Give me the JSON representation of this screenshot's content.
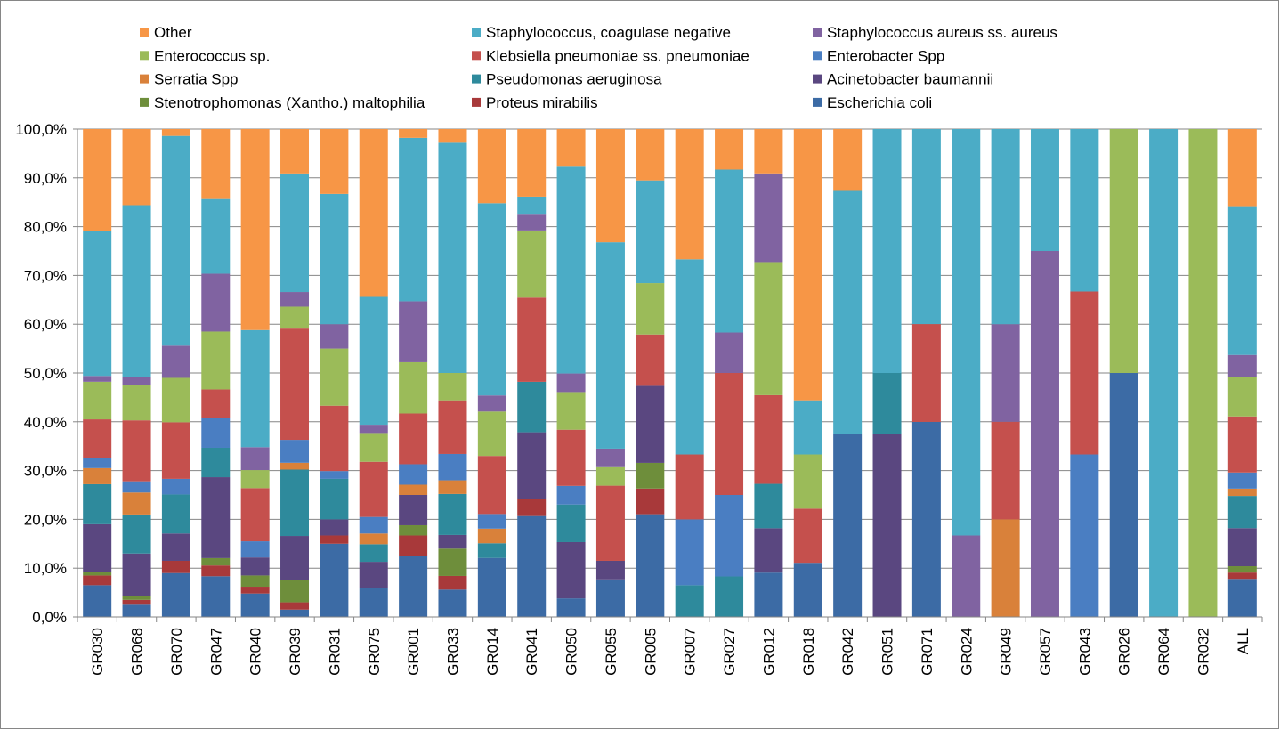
{
  "chart_data": {
    "type": "bar",
    "stacked": true,
    "normalized": true,
    "categories": [
      "GR030",
      "GR068",
      "GR070",
      "GR047",
      "GR040",
      "GR039",
      "GR031",
      "GR075",
      "GR001",
      "GR033",
      "GR014",
      "GR041",
      "GR050",
      "GR055",
      "GR005",
      "GR007",
      "GR027",
      "GR012",
      "GR018",
      "GR042",
      "GR051",
      "GR071",
      "GR024",
      "GR049",
      "GR057",
      "GR043",
      "GR026",
      "GR064",
      "GR032",
      "ALL"
    ],
    "ylim": [
      0,
      100
    ],
    "yticks": [
      "0,0%",
      "10,0%",
      "20,0%",
      "30,0%",
      "40,0%",
      "50,0%",
      "60,0%",
      "70,0%",
      "80,0%",
      "90,0%",
      "100,0%"
    ],
    "grid": true,
    "legend_position": "top",
    "series": [
      {
        "name": "Escherichia coli",
        "color": "#3C6BA5",
        "values": [
          6.5,
          2.5,
          9,
          8.3,
          4.8,
          1.5,
          15,
          5.9,
          12.5,
          5.6,
          12.1,
          20,
          3.8,
          7.7,
          20,
          0,
          0,
          9.1,
          11.1,
          37.5,
          0,
          33.3,
          0,
          0,
          0,
          0,
          50,
          0,
          0,
          7.8
        ]
      },
      {
        "name": "Proteus mirabilis",
        "color": "#A8393A",
        "values": [
          2,
          1,
          2.5,
          2.2,
          1.4,
          1.5,
          1.7,
          0,
          4.2,
          2.8,
          0,
          3.3,
          0,
          0,
          5,
          0,
          0,
          0,
          0,
          0,
          0,
          0,
          0,
          0,
          0,
          0,
          0,
          0,
          0,
          1.3
        ]
      },
      {
        "name": "Stenotrophomonas (Xantho.) maltophilia",
        "color": "#6E8E3B",
        "values": [
          0.8,
          0.7,
          0,
          1.5,
          2.3,
          4.5,
          0,
          0,
          2.1,
          5.6,
          0,
          0,
          0,
          0,
          5,
          0,
          0,
          0,
          0,
          0,
          0,
          0,
          0,
          0,
          0,
          0,
          0,
          0,
          0,
          1.3
        ]
      },
      {
        "name": "Acinetobacter baumannii",
        "color": "#5A4780",
        "values": [
          9.7,
          8.8,
          5.6,
          16.5,
          3.7,
          9.1,
          3.3,
          5.4,
          6.2,
          2.8,
          0,
          13.3,
          11.5,
          3.8,
          15,
          0,
          0,
          9.1,
          0,
          0,
          37.5,
          0,
          0,
          0,
          0,
          0,
          0,
          0,
          0,
          7.8
        ]
      },
      {
        "name": "Pseudomonas aeruginosa",
        "color": "#2E8A9C",
        "values": [
          8.2,
          8,
          8,
          6,
          0,
          13.6,
          8.3,
          3.6,
          0,
          8.4,
          3,
          10,
          7.7,
          0,
          0,
          6.5,
          8.3,
          9.1,
          0,
          0,
          12.5,
          0,
          0,
          0,
          0,
          0,
          0,
          0,
          0,
          6.6
        ]
      },
      {
        "name": "Serratia Spp",
        "color": "#D9813A",
        "values": [
          3.3,
          4.5,
          0,
          0,
          0,
          1.4,
          0,
          2.2,
          2.1,
          2.8,
          3,
          0,
          0,
          0,
          0,
          0,
          0,
          0,
          0,
          0,
          0,
          0,
          0,
          20,
          0,
          0,
          0,
          0,
          0,
          1.5
        ]
      },
      {
        "name": "Enterobacter Spp",
        "color": "#4A7EC2",
        "values": [
          2.1,
          2.3,
          3.2,
          6,
          3.3,
          4.7,
          1.6,
          3.4,
          4.2,
          5.4,
          3,
          0,
          3.8,
          0,
          0,
          13.5,
          16.7,
          0,
          0,
          0,
          0,
          0,
          0,
          0,
          0,
          33.3,
          0,
          0,
          0,
          3.3
        ]
      },
      {
        "name": "Klebsiella pneumoniae ss. pneumoniae",
        "color": "#C5504D",
        "values": [
          7.9,
          12.5,
          11.6,
          5.9,
          10.9,
          22.8,
          13.4,
          11.3,
          10.4,
          11,
          11.9,
          16.7,
          11.5,
          15.4,
          10,
          13.3,
          25,
          18.2,
          11.1,
          0,
          0,
          16.7,
          0,
          20,
          0,
          33.4,
          0,
          0,
          0,
          11.5
        ]
      },
      {
        "name": "Enterococcus sp.",
        "color": "#9BBB59",
        "values": [
          7.7,
          7.2,
          9.1,
          11.8,
          3.7,
          4.5,
          11.7,
          5.9,
          10.5,
          5.6,
          9.1,
          13.3,
          7.7,
          3.8,
          10,
          0,
          0,
          27.3,
          11.1,
          0,
          0,
          0,
          0,
          0,
          0,
          0,
          50,
          0,
          100,
          8
        ]
      },
      {
        "name": "Staphylococcus aureus ss. aureus",
        "color": "#8063A1",
        "values": [
          1.2,
          1.7,
          6.6,
          11.8,
          4.7,
          3,
          5,
          1.7,
          12.5,
          0,
          3.3,
          3.3,
          3.8,
          3.8,
          0,
          0,
          8.3,
          18.2,
          0,
          0,
          0,
          0,
          16.7,
          20,
          75,
          0,
          0,
          0,
          0,
          4.6
        ]
      },
      {
        "name": "Staphylococcus, coagulase negative",
        "color": "#4BACC6",
        "values": [
          29.7,
          35.2,
          43,
          15.4,
          24,
          24.3,
          26.7,
          26.2,
          33.5,
          47.2,
          39.4,
          3.4,
          42.3,
          42.3,
          20,
          40,
          33.4,
          0,
          11.1,
          50,
          50,
          33.3,
          83.3,
          40,
          25,
          33.3,
          0,
          100,
          0,
          30.5
        ]
      },
      {
        "name": "Other",
        "color": "#F79646",
        "values": [
          20.9,
          15.6,
          1.4,
          14.1,
          41.2,
          9.1,
          13.3,
          34.4,
          1.8,
          2.8,
          15.2,
          13.4,
          7.7,
          23.2,
          10,
          26.7,
          8.3,
          9.1,
          55.6,
          12.5,
          0,
          0,
          0,
          0,
          0,
          0,
          0,
          0,
          0,
          15.8
        ]
      }
    ]
  },
  "legend": {
    "order": [
      11,
      10,
      9,
      8,
      7,
      6,
      5,
      4,
      3,
      2,
      1,
      0
    ]
  }
}
